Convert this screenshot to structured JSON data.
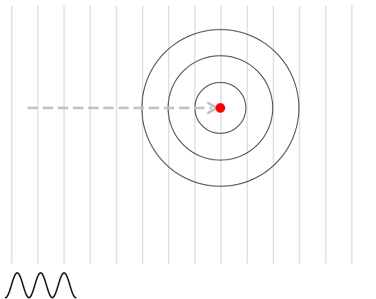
{
  "diagram": {
    "background_color": "#ffffff",
    "wavefront_line_color": "#cccccc",
    "wavefront_line_count": 14,
    "ring_color": "#000000",
    "ring_count": 3,
    "source_dot_color": "#ff0000",
    "arrow_color": "#c0c0c0",
    "arrow_style": "dashed",
    "wave_symbol_color": "#000000",
    "wave_symbol_cycles": 3
  }
}
